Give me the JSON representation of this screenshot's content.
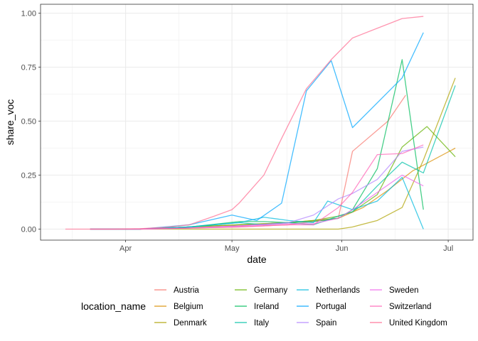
{
  "chart_data": {
    "type": "line",
    "xlabel": "date",
    "ylabel": "share_voc",
    "xlim": [
      "2021-03-08",
      "2021-07-08"
    ],
    "ylim": [
      -0.045,
      1.0
    ],
    "x_ticks": [
      {
        "date": "2021-04-01",
        "label": "Apr"
      },
      {
        "date": "2021-05-01",
        "label": "May"
      },
      {
        "date": "2021-06-01",
        "label": "Jun"
      },
      {
        "date": "2021-07-01",
        "label": "Jul"
      }
    ],
    "y_ticks": [
      {
        "value": 0.0,
        "label": "0.00"
      },
      {
        "value": 0.25,
        "label": "0.25"
      },
      {
        "value": 0.5,
        "label": "0.50"
      },
      {
        "value": 0.75,
        "label": "0.75"
      },
      {
        "value": 1.0,
        "label": "1.00"
      }
    ],
    "grid": true,
    "legend": {
      "title": "location_name",
      "position": "bottom",
      "columns": 4
    },
    "series": [
      {
        "name": "Austria",
        "color": "#F8766D",
        "points": [
          [
            "2021-03-22",
            0.0
          ],
          [
            "2021-04-05",
            0.0
          ],
          [
            "2021-04-19",
            0.005
          ],
          [
            "2021-05-03",
            0.01
          ],
          [
            "2021-05-17",
            0.02
          ],
          [
            "2021-05-31",
            0.05
          ],
          [
            "2021-06-04",
            0.36
          ],
          [
            "2021-06-14",
            0.5
          ],
          [
            "2021-06-19",
            0.62
          ]
        ]
      },
      {
        "name": "Belgium",
        "color": "#DB8E00",
        "points": [
          [
            "2021-03-22",
            0.0
          ],
          [
            "2021-04-05",
            0.0
          ],
          [
            "2021-04-19",
            0.01
          ],
          [
            "2021-05-03",
            0.02
          ],
          [
            "2021-05-17",
            0.03
          ],
          [
            "2021-05-31",
            0.05
          ],
          [
            "2021-06-07",
            0.1
          ],
          [
            "2021-06-14",
            0.18
          ],
          [
            "2021-06-21",
            0.27
          ],
          [
            "2021-07-03",
            0.375
          ]
        ]
      },
      {
        "name": "Denmark",
        "color": "#AEA200",
        "points": [
          [
            "2021-03-22",
            0.0
          ],
          [
            "2021-04-05",
            0.0
          ],
          [
            "2021-04-19",
            0.0
          ],
          [
            "2021-05-03",
            0.0
          ],
          [
            "2021-05-17",
            0.0
          ],
          [
            "2021-05-24",
            0.0
          ],
          [
            "2021-05-31",
            0.0
          ],
          [
            "2021-06-04",
            0.01
          ],
          [
            "2021-06-11",
            0.04
          ],
          [
            "2021-06-18",
            0.1
          ],
          [
            "2021-06-24",
            0.32
          ],
          [
            "2021-07-03",
            0.7
          ]
        ]
      },
      {
        "name": "Germany",
        "color": "#64B200",
        "points": [
          [
            "2021-03-22",
            0.0
          ],
          [
            "2021-04-05",
            0.0
          ],
          [
            "2021-04-19",
            0.01
          ],
          [
            "2021-05-03",
            0.02
          ],
          [
            "2021-05-17",
            0.03
          ],
          [
            "2021-05-24",
            0.04
          ],
          [
            "2021-05-31",
            0.06
          ],
          [
            "2021-06-04",
            0.08
          ],
          [
            "2021-06-11",
            0.16
          ],
          [
            "2021-06-18",
            0.38
          ],
          [
            "2021-06-25",
            0.475
          ],
          [
            "2021-07-03",
            0.335
          ]
        ]
      },
      {
        "name": "Ireland",
        "color": "#00BD5C",
        "points": [
          [
            "2021-03-22",
            0.0
          ],
          [
            "2021-04-05",
            0.0
          ],
          [
            "2021-04-19",
            0.01
          ],
          [
            "2021-05-03",
            0.035
          ],
          [
            "2021-05-10",
            0.035
          ],
          [
            "2021-05-17",
            0.03
          ],
          [
            "2021-05-24",
            0.035
          ],
          [
            "2021-05-31",
            0.05
          ],
          [
            "2021-06-04",
            0.09
          ],
          [
            "2021-06-11",
            0.28
          ],
          [
            "2021-06-18",
            0.785
          ],
          [
            "2021-06-24",
            0.09
          ]
        ]
      },
      {
        "name": "Italy",
        "color": "#00C1A7",
        "points": [
          [
            "2021-03-22",
            0.0
          ],
          [
            "2021-04-05",
            0.0
          ],
          [
            "2021-04-19",
            0.01
          ],
          [
            "2021-05-03",
            0.03
          ],
          [
            "2021-05-10",
            0.02
          ],
          [
            "2021-05-17",
            0.03
          ],
          [
            "2021-05-24",
            0.02
          ],
          [
            "2021-05-31",
            0.06
          ],
          [
            "2021-06-04",
            0.08
          ],
          [
            "2021-06-11",
            0.2
          ],
          [
            "2021-06-18",
            0.31
          ],
          [
            "2021-06-24",
            0.26
          ],
          [
            "2021-07-03",
            0.665
          ]
        ]
      },
      {
        "name": "Netherlands",
        "color": "#00BADE",
        "points": [
          [
            "2021-03-22",
            0.0
          ],
          [
            "2021-04-05",
            0.0
          ],
          [
            "2021-04-19",
            0.01
          ],
          [
            "2021-05-03",
            0.03
          ],
          [
            "2021-05-10",
            0.055
          ],
          [
            "2021-05-17",
            0.04
          ],
          [
            "2021-05-24",
            0.03
          ],
          [
            "2021-05-28",
            0.13
          ],
          [
            "2021-06-04",
            0.09
          ],
          [
            "2021-06-11",
            0.13
          ],
          [
            "2021-06-18",
            0.24
          ],
          [
            "2021-06-24",
            0.0
          ]
        ]
      },
      {
        "name": "Portugal",
        "color": "#00A6FF",
        "points": [
          [
            "2021-03-22",
            0.0
          ],
          [
            "2021-04-05",
            0.0
          ],
          [
            "2021-04-19",
            0.02
          ],
          [
            "2021-05-01",
            0.065
          ],
          [
            "2021-05-08",
            0.04
          ],
          [
            "2021-05-15",
            0.12
          ],
          [
            "2021-05-22",
            0.64
          ],
          [
            "2021-05-29",
            0.78
          ],
          [
            "2021-06-04",
            0.47
          ],
          [
            "2021-06-18",
            0.7
          ],
          [
            "2021-06-24",
            0.91
          ]
        ]
      },
      {
        "name": "Spain",
        "color": "#B385FF",
        "points": [
          [
            "2021-03-22",
            0.0
          ],
          [
            "2021-04-05",
            0.0
          ],
          [
            "2021-04-19",
            0.005
          ],
          [
            "2021-05-03",
            0.015
          ],
          [
            "2021-05-17",
            0.03
          ],
          [
            "2021-05-24",
            0.065
          ],
          [
            "2021-05-31",
            0.14
          ],
          [
            "2021-06-04",
            0.165
          ],
          [
            "2021-06-11",
            0.23
          ],
          [
            "2021-06-18",
            0.36
          ],
          [
            "2021-06-24",
            0.38
          ]
        ]
      },
      {
        "name": "Sweden",
        "color": "#EF67EB",
        "points": [
          [
            "2021-03-22",
            0.0
          ],
          [
            "2021-04-05",
            0.0
          ],
          [
            "2021-04-19",
            0.005
          ],
          [
            "2021-05-03",
            0.015
          ],
          [
            "2021-05-17",
            0.025
          ],
          [
            "2021-05-24",
            0.025
          ],
          [
            "2021-05-31",
            0.05
          ],
          [
            "2021-06-04",
            0.09
          ],
          [
            "2021-06-11",
            0.17
          ],
          [
            "2021-06-18",
            0.25
          ],
          [
            "2021-06-24",
            0.2
          ]
        ]
      },
      {
        "name": "Switzerland",
        "color": "#FF63B6",
        "points": [
          [
            "2021-03-22",
            0.0
          ],
          [
            "2021-04-05",
            0.0
          ],
          [
            "2021-04-19",
            0.005
          ],
          [
            "2021-05-03",
            0.01
          ],
          [
            "2021-05-17",
            0.02
          ],
          [
            "2021-05-24",
            0.02
          ],
          [
            "2021-05-31",
            0.1
          ],
          [
            "2021-06-04",
            0.17
          ],
          [
            "2021-06-11",
            0.345
          ],
          [
            "2021-06-18",
            0.35
          ],
          [
            "2021-06-24",
            0.39
          ]
        ]
      },
      {
        "name": "United Kingdom",
        "color": "#FF6C91",
        "points": [
          [
            "2021-03-15",
            0.0
          ],
          [
            "2021-03-22",
            0.0
          ],
          [
            "2021-03-29",
            0.0
          ],
          [
            "2021-04-05",
            0.002
          ],
          [
            "2021-04-12",
            0.008
          ],
          [
            "2021-04-19",
            0.02
          ],
          [
            "2021-04-26",
            0.06
          ],
          [
            "2021-05-01",
            0.09
          ],
          [
            "2021-05-03",
            0.12
          ],
          [
            "2021-05-10",
            0.25
          ],
          [
            "2021-05-15",
            0.42
          ],
          [
            "2021-05-22",
            0.65
          ],
          [
            "2021-05-29",
            0.785
          ],
          [
            "2021-06-04",
            0.885
          ],
          [
            "2021-06-11",
            0.93
          ],
          [
            "2021-06-18",
            0.975
          ],
          [
            "2021-06-24",
            0.985
          ]
        ]
      }
    ]
  }
}
